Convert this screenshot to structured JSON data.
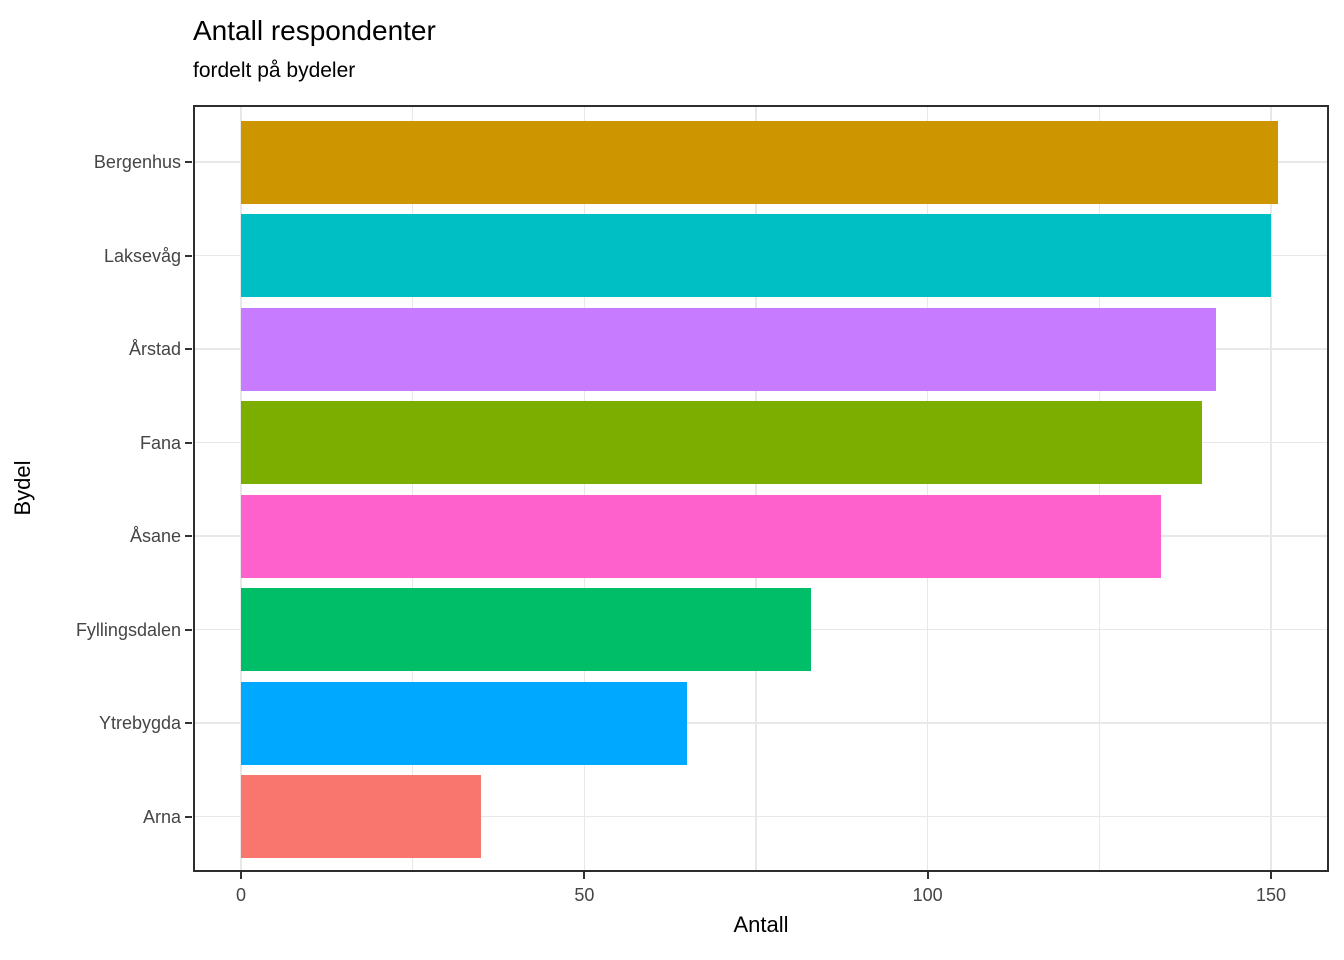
{
  "title": "Antall respondenter",
  "subtitle": "fordelt på bydeler",
  "chart_data": {
    "type": "bar",
    "orientation": "horizontal",
    "title": "Antall respondenter",
    "subtitle": "fordelt på bydeler",
    "xlabel": "Antall",
    "ylabel": "Bydel",
    "categories": [
      "Bergenhus",
      "Laksevåg",
      "Årstad",
      "Fana",
      "Åsane",
      "Fyllingsdalen",
      "Ytrebygda",
      "Arna"
    ],
    "values": [
      151,
      150,
      142,
      140,
      134,
      83,
      65,
      35
    ],
    "bar_colors": [
      "#CD9600",
      "#00BFC4",
      "#C77CFF",
      "#7CAE00",
      "#FF61CC",
      "#00BE67",
      "#00A9FF",
      "#F8766D"
    ],
    "x_major_ticks": [
      0,
      50,
      100,
      150
    ],
    "x_minor_gridlines": [
      25,
      75,
      125
    ],
    "xlim": [
      0,
      155
    ],
    "grid": "major and minor vertical, horizontal at category centers",
    "legend": "none",
    "panel_border_color": "#2d2d2d",
    "gridline_color": "#e8e8e8",
    "axis_text_color": "#454545"
  }
}
